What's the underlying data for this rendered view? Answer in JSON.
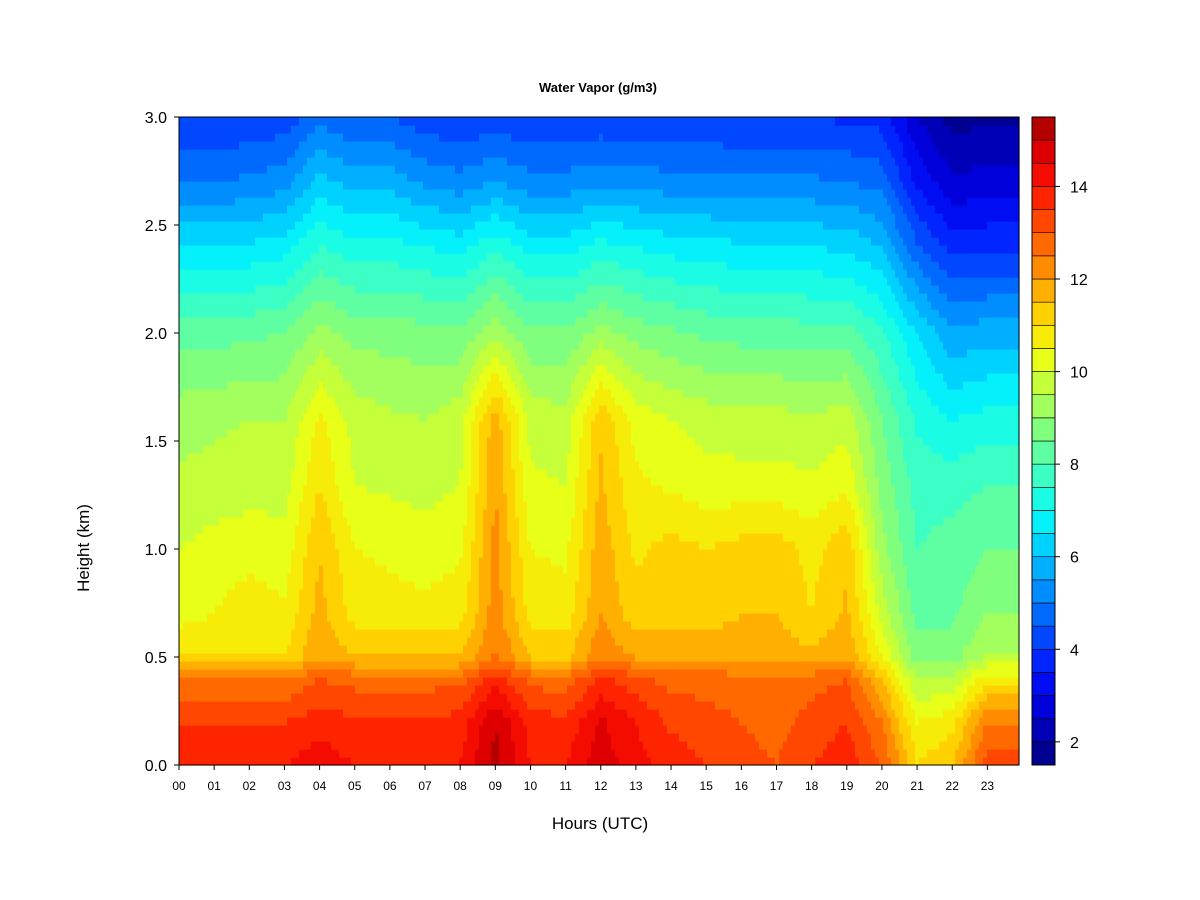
{
  "chart_data": {
    "type": "heatmap",
    "title": "Water Vapor (g/m3)",
    "xlabel": "Hours (UTC)",
    "ylabel": "Height (km)",
    "x_ticks": [
      "00",
      "01",
      "02",
      "03",
      "04",
      "05",
      "06",
      "07",
      "08",
      "09",
      "10",
      "11",
      "12",
      "13",
      "14",
      "15",
      "16",
      "17",
      "18",
      "19",
      "20",
      "21",
      "22",
      "23"
    ],
    "y_ticks": [
      "0.0",
      "0.5",
      "1.0",
      "1.5",
      "2.0",
      "2.5",
      "3.0"
    ],
    "xlim": [
      0,
      23.9
    ],
    "ylim": [
      0,
      3.0
    ],
    "colorbar": {
      "ticks": [
        "2",
        "4",
        "6",
        "8",
        "10",
        "12",
        "14"
      ],
      "range": [
        1.5,
        15.5
      ],
      "levels": 28,
      "colors": [
        "#00007F",
        "#0000B5",
        "#0000EB",
        "#0022FF",
        "#0055FF",
        "#0088FF",
        "#00BBFF",
        "#00EEFF",
        "#22FFDD",
        "#55FFAA",
        "#88FF77",
        "#BBFF44",
        "#EEFF11",
        "#FFDD00",
        "#FFAA00",
        "#FF7700",
        "#FF4400",
        "#FF1100",
        "#DD0000",
        "#A00000"
      ]
    },
    "hours": [
      0,
      1,
      2,
      3,
      4,
      5,
      6,
      7,
      8,
      9,
      10,
      11,
      12,
      13,
      14,
      15,
      16,
      17,
      18,
      19,
      20,
      21,
      22,
      23
    ],
    "profiles": {
      "heights_km": [
        0.0,
        0.2,
        0.4,
        0.5,
        0.7,
        1.0,
        1.3,
        1.6,
        2.0,
        2.4,
        2.7,
        3.0
      ],
      "values": [
        [
          14.0,
          13.5,
          12.5,
          11.0,
          10.3,
          10.0,
          9.6,
          9.3,
          8.3,
          6.5,
          5.0,
          4.0
        ],
        [
          14.0,
          13.5,
          12.5,
          11.0,
          10.5,
          10.2,
          9.7,
          9.4,
          8.3,
          6.5,
          5.0,
          4.0
        ],
        [
          14.0,
          13.5,
          12.5,
          11.0,
          10.8,
          10.3,
          9.8,
          9.5,
          8.4,
          6.6,
          5.1,
          4.1
        ],
        [
          14.0,
          13.5,
          12.5,
          11.0,
          10.6,
          10.2,
          9.8,
          9.5,
          8.5,
          6.8,
          5.3,
          4.2
        ],
        [
          14.3,
          13.8,
          13.0,
          12.0,
          11.7,
          11.5,
          11.0,
          10.6,
          9.2,
          7.5,
          6.2,
          4.8
        ],
        [
          14.0,
          13.6,
          12.8,
          11.5,
          10.8,
          10.5,
          10.0,
          9.8,
          8.8,
          7.2,
          5.8,
          4.5
        ],
        [
          14.0,
          13.6,
          12.8,
          11.5,
          10.7,
          10.4,
          9.9,
          9.6,
          8.8,
          7.2,
          5.8,
          4.5
        ],
        [
          14.0,
          13.6,
          12.8,
          11.5,
          10.6,
          10.3,
          9.8,
          9.5,
          8.7,
          7.0,
          5.4,
          4.2
        ],
        [
          14.0,
          13.7,
          12.8,
          11.5,
          10.8,
          10.4,
          10.0,
          9.8,
          8.6,
          6.8,
          5.2,
          4.0
        ],
        [
          15.2,
          15.0,
          13.8,
          12.6,
          12.3,
          12.2,
          12.0,
          11.8,
          9.4,
          7.4,
          5.5,
          4.2
        ],
        [
          14.0,
          13.8,
          12.8,
          11.5,
          10.8,
          10.5,
          10.1,
          9.8,
          8.6,
          6.8,
          5.2,
          4.0
        ],
        [
          14.0,
          13.6,
          12.7,
          11.4,
          10.7,
          10.4,
          10.0,
          9.7,
          8.6,
          6.8,
          5.2,
          4.0
        ],
        [
          14.8,
          14.6,
          13.6,
          12.4,
          12.0,
          11.8,
          11.6,
          11.4,
          9.2,
          7.2,
          5.4,
          4.1
        ],
        [
          14.2,
          14.0,
          13.2,
          12.0,
          11.2,
          10.9,
          10.6,
          10.3,
          8.8,
          7.0,
          5.3,
          4.1
        ],
        [
          13.8,
          13.4,
          12.8,
          11.8,
          11.3,
          11.2,
          10.4,
          10.0,
          8.6,
          6.8,
          5.2,
          4.0
        ],
        [
          13.5,
          13.2,
          12.8,
          11.8,
          11.3,
          11.0,
          10.2,
          9.8,
          8.4,
          6.7,
          5.2,
          4.0
        ],
        [
          13.2,
          13.0,
          12.7,
          11.8,
          11.5,
          11.2,
          10.2,
          9.7,
          8.3,
          6.6,
          5.1,
          4.0
        ],
        [
          13.0,
          12.8,
          12.6,
          11.8,
          11.5,
          11.3,
          10.2,
          9.7,
          8.3,
          6.6,
          5.1,
          4.0
        ],
        [
          13.5,
          13.2,
          12.8,
          11.6,
          11.0,
          10.8,
          10.1,
          9.6,
          8.2,
          6.5,
          5.1,
          4.0
        ],
        [
          13.8,
          13.5,
          13.0,
          12.0,
          11.6,
          11.4,
          10.4,
          9.8,
          8.2,
          6.4,
          5.0,
          3.9
        ],
        [
          13.0,
          12.5,
          11.5,
          10.5,
          9.8,
          9.2,
          8.8,
          8.5,
          7.6,
          6.0,
          4.8,
          3.8
        ],
        [
          11.0,
          10.5,
          9.5,
          8.8,
          8.3,
          8.0,
          7.8,
          7.4,
          6.5,
          4.6,
          3.4,
          2.5
        ],
        [
          11.5,
          10.8,
          9.6,
          8.8,
          8.4,
          8.2,
          7.8,
          7.0,
          5.6,
          3.8,
          2.6,
          1.8
        ],
        [
          13.2,
          12.5,
          10.8,
          9.6,
          9.0,
          8.5,
          8.0,
          7.2,
          5.8,
          3.9,
          2.7,
          1.9
        ]
      ]
    },
    "grid": false,
    "legend": "colorbar-right"
  }
}
